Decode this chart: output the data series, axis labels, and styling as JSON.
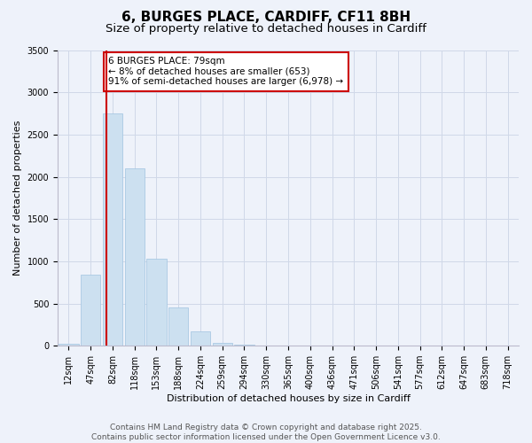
{
  "title_line1": "6, BURGES PLACE, CARDIFF, CF11 8BH",
  "title_line2": "Size of property relative to detached houses in Cardiff",
  "xlabel": "Distribution of detached houses by size in Cardiff",
  "ylabel": "Number of detached properties",
  "categories": [
    "12sqm",
    "47sqm",
    "82sqm",
    "118sqm",
    "153sqm",
    "188sqm",
    "224sqm",
    "259sqm",
    "294sqm",
    "330sqm",
    "365sqm",
    "400sqm",
    "436sqm",
    "471sqm",
    "506sqm",
    "541sqm",
    "577sqm",
    "612sqm",
    "647sqm",
    "683sqm",
    "718sqm"
  ],
  "values": [
    20,
    840,
    2750,
    2100,
    1030,
    450,
    175,
    30,
    10,
    5,
    3,
    2,
    1,
    1,
    1,
    0,
    0,
    0,
    0,
    0,
    0
  ],
  "bar_color": "#cce0f0",
  "bar_edgecolor": "#a0c4e0",
  "vline_x": 1.72,
  "vline_color": "#cc0000",
  "annotation_text": "6 BURGES PLACE: 79sqm\n← 8% of detached houses are smaller (653)\n91% of semi-detached houses are larger (6,978) →",
  "annotation_box_color": "#ffffff",
  "annotation_box_edgecolor": "#cc0000",
  "ylim": [
    0,
    3500
  ],
  "yticks": [
    0,
    500,
    1000,
    1500,
    2000,
    2500,
    3000,
    3500
  ],
  "bg_color": "#eef2fa",
  "plot_bg_color": "#eef2fa",
  "grid_color": "#d0d8e8",
  "footnote": "Contains HM Land Registry data © Crown copyright and database right 2025.\nContains public sector information licensed under the Open Government Licence v3.0.",
  "title_fontsize": 11,
  "subtitle_fontsize": 9.5,
  "axis_label_fontsize": 8,
  "tick_fontsize": 7,
  "annotation_fontsize": 7.5,
  "footnote_fontsize": 6.5
}
